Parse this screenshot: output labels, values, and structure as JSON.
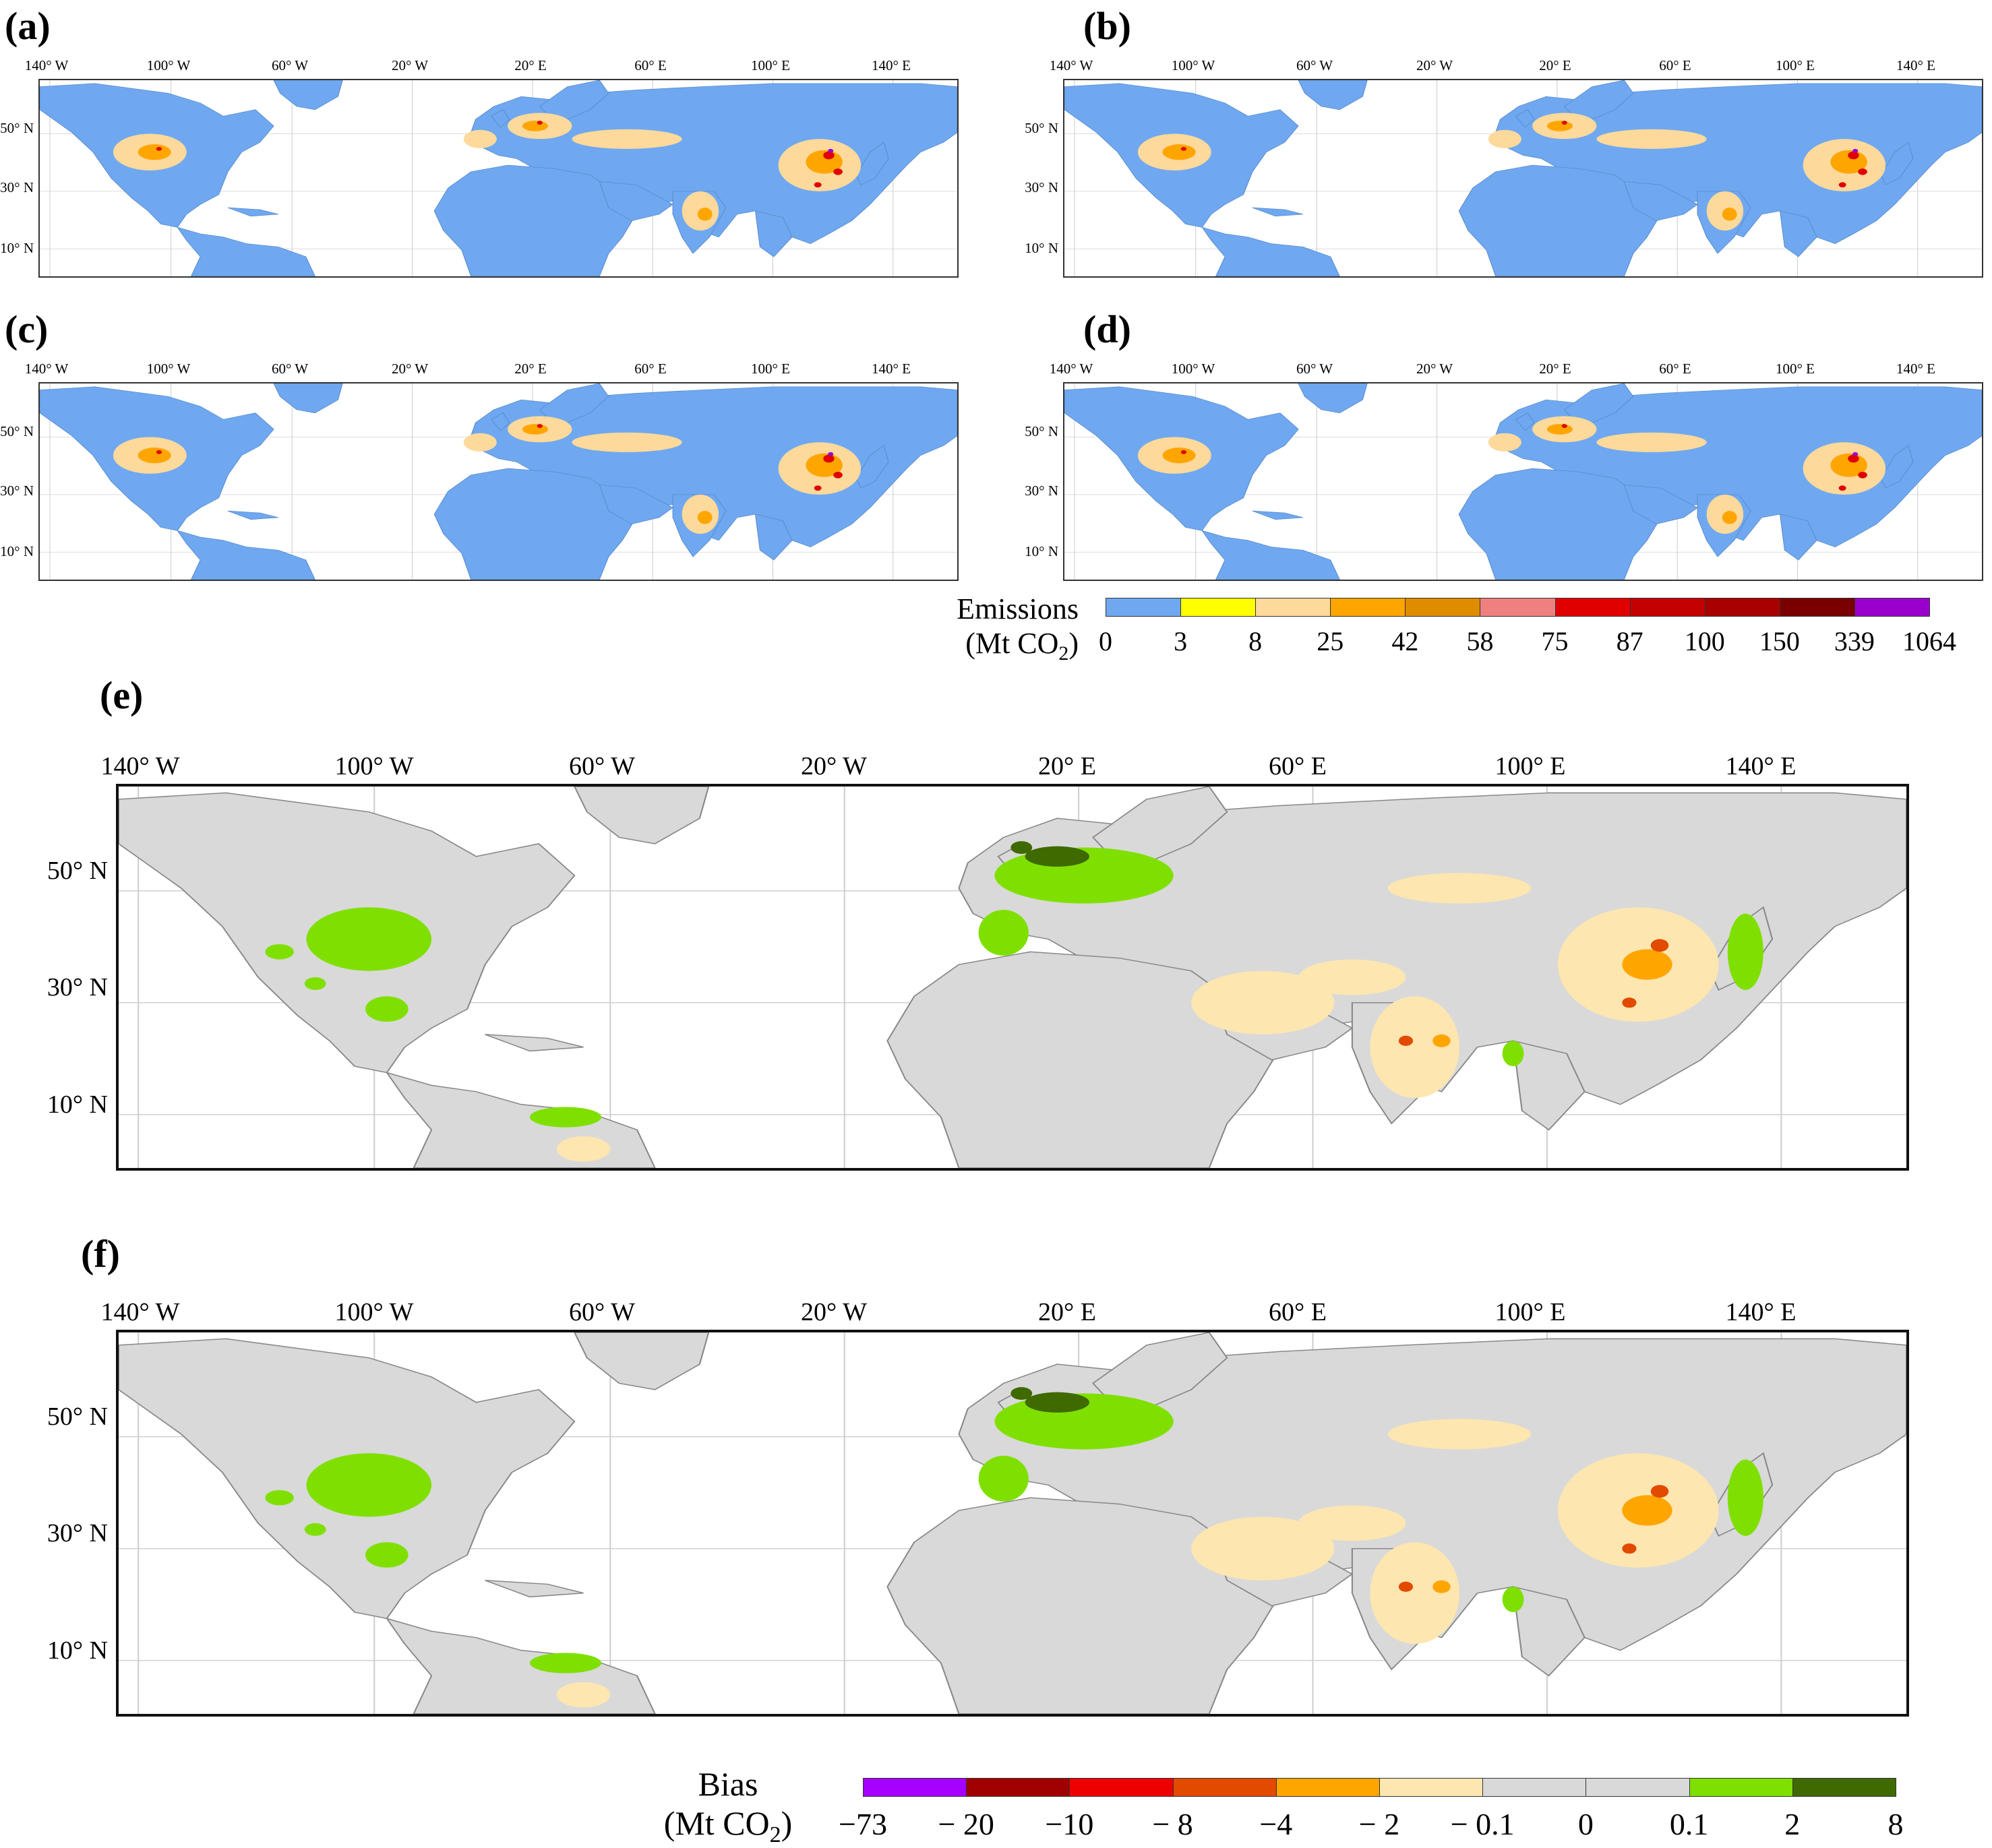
{
  "figure": {
    "panels": [
      {
        "label": "(a)",
        "size": "small"
      },
      {
        "label": "(b)",
        "size": "small"
      },
      {
        "label": "(c)",
        "size": "small"
      },
      {
        "label": "(d)",
        "size": "small"
      },
      {
        "label": "(e)",
        "size": "large"
      },
      {
        "label": "(f)",
        "size": "large"
      }
    ],
    "lon_labels": [
      "140° W",
      "100° W",
      "60° W",
      "20° W",
      "20° E",
      "60° E",
      "100° E",
      "140° E"
    ],
    "lat_labels_small": [
      "50° N",
      "30° N",
      "10° N"
    ],
    "lat_labels_large": [
      "50° N",
      "30° N",
      "10° N"
    ]
  },
  "emissions_colorbar": {
    "title_line1": "Emissions",
    "title_line2_prefix": "(Mt CO",
    "title_line2_sub": "2",
    "title_line2_suffix": ")",
    "ticks": [
      "0",
      "3",
      "8",
      "25",
      "42",
      "58",
      "75",
      "87",
      "100",
      "150",
      "339",
      "1064"
    ],
    "colors": [
      "#6fa8f0",
      "#ffff00",
      "#fdd99b",
      "#ffa500",
      "#e08c00",
      "#f08080",
      "#e00000",
      "#c40000",
      "#a80000",
      "#7a0000",
      "#9900cc"
    ]
  },
  "bias_colorbar": {
    "title_line1": "Bias",
    "title_line2_prefix": "(Mt CO",
    "title_line2_sub": "2",
    "title_line2_suffix": ")",
    "ticks": [
      "−73",
      "− 20",
      "−10",
      "− 8",
      "−4",
      "− 2",
      "− 0.1",
      "0",
      "0.1",
      "2",
      "8"
    ],
    "colors": [
      "#a600ff",
      "#a00000",
      "#ee0000",
      "#e24a00",
      "#ffa500",
      "#fde6b0",
      "#d9d9d9",
      "#d9d9d9",
      "#7fe000",
      "#3f6a00"
    ]
  },
  "legend_colors": {
    "ocean": "#ffffff",
    "land_emission_maps": "#6fa8f0",
    "land_bias_maps": "#d9d9d9",
    "graticule": "#d0d0d0"
  }
}
